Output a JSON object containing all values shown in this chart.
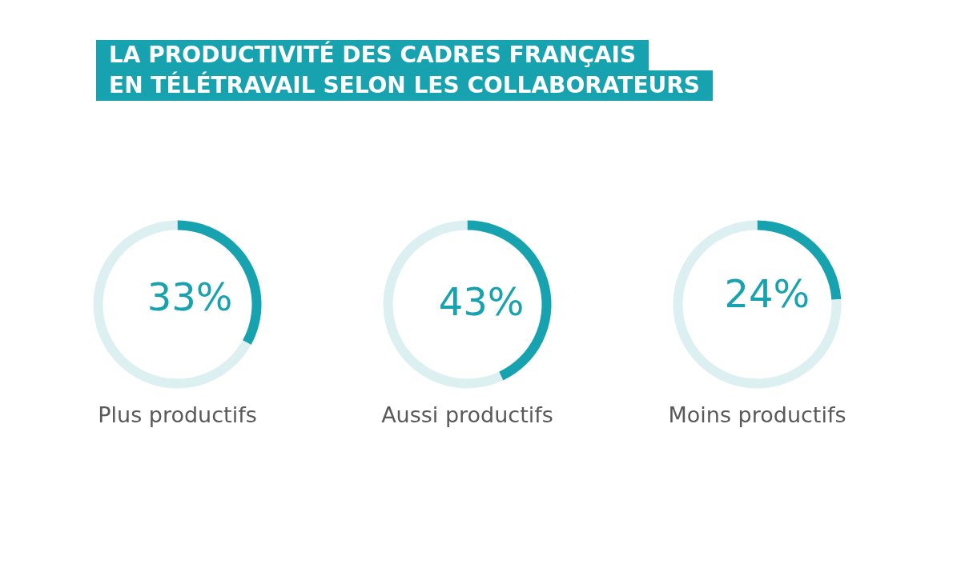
{
  "chart_data": [
    {
      "type": "donut",
      "title": "LA PRODUCTIVITÉ DES CADRES FRANÇAIS\nEN TÉLÉTRAVAIL SELON LES COLLABORATEURS",
      "xlabel": "Plus productifs",
      "categories": [
        null,
        null
      ],
      "values": [
        33,
        67
      ],
      "colors": [
        "#16a3af",
        "#dcf0f1"
      ],
      "value_labels": [
        "33%",
        null
      ]
    },
    {
      "type": "donut",
      "xlabel": "Aussi productifs",
      "categories": [
        null,
        null
      ],
      "values": [
        43,
        57
      ],
      "colors": [
        "#16a3af",
        "#dcf0f1"
      ],
      "value_labels": [
        "43%",
        null
      ]
    },
    {
      "type": "donut",
      "xlabel": "Moins productifs",
      "categories": [
        null,
        null
      ],
      "values": [
        24,
        76
      ],
      "colors": [
        "#16a3af",
        "#dcf0f1"
      ],
      "value_labels": [
        "24%",
        null
      ]
    }
  ]
}
